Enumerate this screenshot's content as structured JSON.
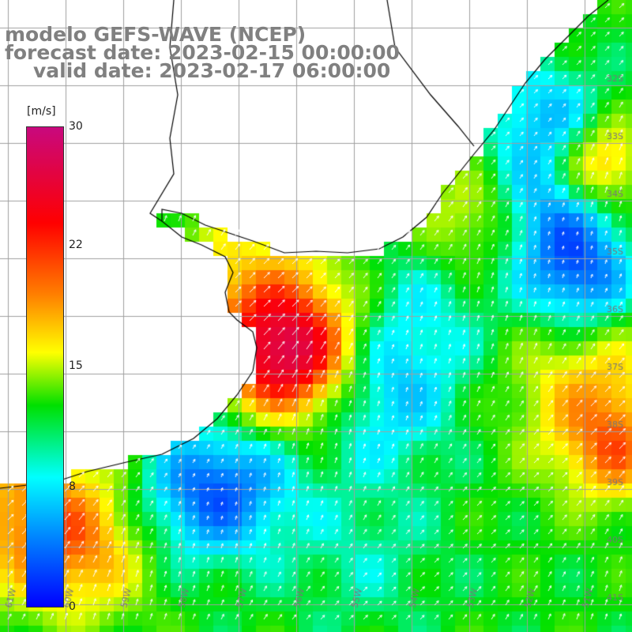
{
  "title": {
    "model": "modelo GEFS-WAVE (NCEP)",
    "forecast": "forecast date: 2023-02-15 00:00:00",
    "valid": "valid date: 2023-02-17 06:00:00"
  },
  "colorbar": {
    "unit": "[m/s]",
    "ticks": [
      "30",
      "22",
      "15",
      "8",
      "0"
    ],
    "tick_values": [
      30,
      22,
      15,
      8,
      0
    ],
    "colors": [
      "#0000ff",
      "#0080ff",
      "#00ffff",
      "#00e000",
      "#ffff00",
      "#ff8000",
      "#ff0000",
      "#c8087e"
    ]
  },
  "map": {
    "variable": "wind speed",
    "lat_labels": [
      "32S",
      "33S",
      "34S",
      "35S",
      "36S",
      "37S",
      "38S",
      "39S",
      "40S",
      "41S"
    ],
    "lon_labels": [
      "61W",
      "60W",
      "59W",
      "58W",
      "57W",
      "56W",
      "55W",
      "54W",
      "53W",
      "52W",
      "51W"
    ],
    "grid_color": "#a0a0a0",
    "coast_color": "#000000",
    "arrow_color": "#ffffff"
  }
}
